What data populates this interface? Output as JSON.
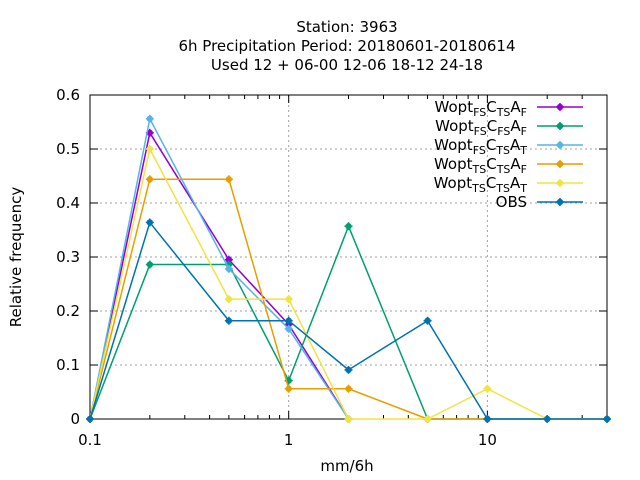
{
  "chart_data": {
    "type": "line",
    "title_lines": [
      "Station:     3963",
      "6h Precipitation  Period: 20180601-20180614",
      "Used  12 + 06-00 12-06 18-12 24-18"
    ],
    "xlabel": "mm/6h",
    "ylabel": "Relative frequency",
    "xscale": "log",
    "xlim": [
      0.1,
      40
    ],
    "ylim": [
      0,
      0.6
    ],
    "grid": true,
    "legend_position": "top-right",
    "x_ticks": [
      {
        "value": 0.1,
        "label": "0.1"
      },
      {
        "value": 1,
        "label": "1"
      },
      {
        "value": 10,
        "label": "10"
      }
    ],
    "y_ticks": [
      {
        "value": 0,
        "label": "0"
      },
      {
        "value": 0.1,
        "label": "0.1"
      },
      {
        "value": 0.2,
        "label": "0.2"
      },
      {
        "value": 0.3,
        "label": "0.3"
      },
      {
        "value": 0.4,
        "label": "0.4"
      },
      {
        "value": 0.5,
        "label": "0.5"
      },
      {
        "value": 0.6,
        "label": "0.6"
      }
    ],
    "x": [
      0.1,
      0.2,
      0.5,
      1,
      2,
      5,
      10,
      20,
      40
    ],
    "series": [
      {
        "name": "Wopt FS CTS AF",
        "label_parts": [
          [
            "Wopt",
            ""
          ],
          [
            "FS",
            "sub"
          ],
          [
            "C",
            ""
          ],
          [
            "TS",
            "sub"
          ],
          [
            "A",
            ""
          ],
          [
            "F",
            "sub"
          ]
        ],
        "color": "#9400d3",
        "values": [
          0,
          0.53,
          0.295,
          0.175,
          0,
          null,
          null,
          null,
          null
        ]
      },
      {
        "name": "Wopt FS CFS AF",
        "label_parts": [
          [
            "Wopt",
            ""
          ],
          [
            "FS",
            "sub"
          ],
          [
            "C",
            ""
          ],
          [
            "FS",
            "sub"
          ],
          [
            "A",
            ""
          ],
          [
            "F",
            "sub"
          ]
        ],
        "color": "#009e73",
        "values": [
          0,
          0.286,
          0.286,
          0.071,
          0.357,
          0,
          0,
          0,
          0
        ]
      },
      {
        "name": "Wopt FS CTS AT",
        "label_parts": [
          [
            "Wopt",
            ""
          ],
          [
            "FS",
            "sub"
          ],
          [
            "C",
            ""
          ],
          [
            "TS",
            "sub"
          ],
          [
            "A",
            ""
          ],
          [
            "T",
            "sub"
          ]
        ],
        "color": "#56b4e9",
        "values": [
          0,
          0.556,
          0.278,
          0.167,
          0,
          null,
          null,
          null,
          null
        ]
      },
      {
        "name": "Wopt TS CTS AF",
        "label_parts": [
          [
            "Wopt",
            ""
          ],
          [
            "TS",
            "sub"
          ],
          [
            "C",
            ""
          ],
          [
            "TS",
            "sub"
          ],
          [
            "A",
            ""
          ],
          [
            "F",
            "sub"
          ]
        ],
        "color": "#e69f00",
        "values": [
          0,
          0.444,
          0.444,
          0.056,
          0.056,
          0,
          0,
          0,
          0
        ]
      },
      {
        "name": "Wopt TS CTS AT",
        "label_parts": [
          [
            "Wopt",
            ""
          ],
          [
            "TS",
            "sub"
          ],
          [
            "C",
            ""
          ],
          [
            "TS",
            "sub"
          ],
          [
            "A",
            ""
          ],
          [
            "T",
            "sub"
          ]
        ],
        "color": "#f0e442",
        "values": [
          0,
          0.5,
          0.222,
          0.222,
          0,
          0,
          0.056,
          0,
          0
        ]
      },
      {
        "name": "OBS",
        "label_parts": [
          [
            "OBS",
            ""
          ]
        ],
        "color": "#0072b2",
        "values": [
          0,
          0.364,
          0.182,
          0.182,
          0.091,
          0.182,
          0,
          0,
          0
        ]
      }
    ]
  }
}
